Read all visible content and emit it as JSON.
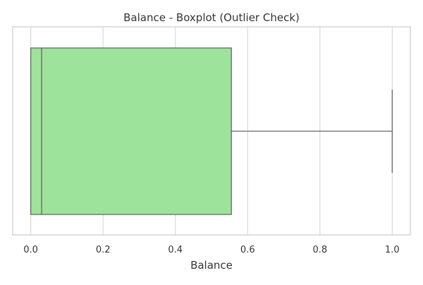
{
  "chart_data": {
    "type": "boxplot",
    "title": "Balance - Boxplot (Outlier Check)",
    "xlabel": "Balance",
    "ylabel": "",
    "orientation": "horizontal",
    "xlim": [
      -0.05,
      1.05
    ],
    "x_ticks": [
      0.0,
      0.2,
      0.4,
      0.6,
      0.8,
      1.0
    ],
    "x_tick_labels": [
      "0.0",
      "0.2",
      "0.4",
      "0.6",
      "0.8",
      "1.0"
    ],
    "grid": true,
    "box": {
      "whisker_low": 0.0,
      "q1": 0.0,
      "median": 0.03,
      "q3": 0.555,
      "whisker_high": 1.0
    },
    "outliers": []
  },
  "colors": {
    "box_fill": "#9ee39b",
    "box_edge": "#666666",
    "grid": "#d9d9d9",
    "frame": "#cccccc",
    "text": "#333333"
  }
}
